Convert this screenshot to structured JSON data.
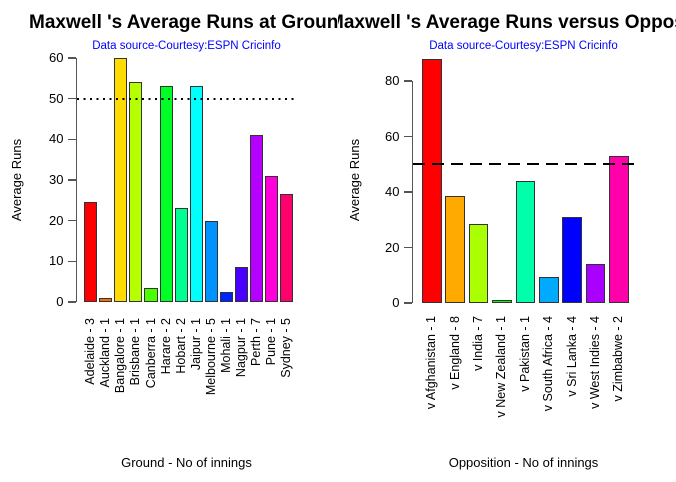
{
  "figure": {
    "background": "#ffffff",
    "subtitle_color": "#0000ff",
    "axis_color": "#555555",
    "bar_border_color": "#333333",
    "text_color": "#000000"
  },
  "chart_data": [
    {
      "type": "bar",
      "title": "Maxwell 's Average Runs at Grounds",
      "subtitle": "Data source-Courtesy:ESPN Cricinfo",
      "xlabel": "Ground - No of innings",
      "ylabel": "Average Runs",
      "ylim": [
        0,
        60
      ],
      "yticks": [
        0,
        10,
        20,
        30,
        40,
        50,
        60
      ],
      "grid": false,
      "legend": null,
      "ref_line": {
        "y": 50,
        "style": "dotted"
      },
      "categories": [
        "Adelaide - 3",
        "Auckland - 1",
        "Bangalore - 1",
        "Brisbane - 1",
        "Canberra - 1",
        "Harare - 2",
        "Hobart - 2",
        "Jaipur - 1",
        "Melbourne - 5",
        "Mohali - 1",
        "Nagpur - 1",
        "Perth - 7",
        "Pune - 1",
        "Sydney - 5"
      ],
      "values": [
        24.5,
        1,
        60,
        54,
        3.5,
        53,
        23,
        53,
        20,
        2.5,
        8.5,
        41,
        31,
        26.5
      ],
      "colors": [
        "#FF0000",
        "#FF6D00",
        "#FFDB00",
        "#B6FF00",
        "#49FF00",
        "#00FF24",
        "#00FF92",
        "#00FFFF",
        "#0092FF",
        "#0024FF",
        "#4900FF",
        "#B600FF",
        "#FF00DB",
        "#FF006D"
      ]
    },
    {
      "type": "bar",
      "title": "Maxwell 's Average Runs versus Opposition",
      "subtitle": "Data source-Courtesy:ESPN Cricinfo",
      "xlabel": "Opposition - No of innings",
      "ylabel": "Average Runs",
      "ylim": [
        0,
        88
      ],
      "yticks": [
        0,
        20,
        40,
        60,
        80
      ],
      "grid": false,
      "legend": null,
      "ref_line": {
        "y": 50,
        "style": "dashed"
      },
      "categories": [
        "v Afghanistan - 1",
        "v England - 8",
        "v India - 7",
        "v New Zealand - 1",
        "v Pakistan - 1",
        "v South Africa - 4",
        "v Sri Lanka - 4",
        "v West Indies - 4",
        "v Zimbabwe - 2"
      ],
      "values": [
        88,
        38.5,
        28.5,
        1,
        44,
        9.5,
        31,
        14,
        53
      ],
      "colors": [
        "#FF0000",
        "#FFAA00",
        "#AAFF00",
        "#00FF00",
        "#00FFAA",
        "#00AAFF",
        "#0000FF",
        "#AA00FF",
        "#FF00AA"
      ]
    }
  ]
}
